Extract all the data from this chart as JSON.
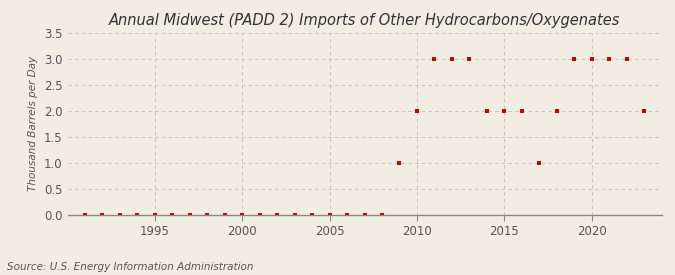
{
  "title": "Annual Midwest (PADD 2) Imports of Other Hydrocarbons/Oxygenates",
  "ylabel": "Thousand Barrels per Day",
  "source": "Source: U.S. Energy Information Administration",
  "background_color": "#f2ede3",
  "marker_color": "#cc0000",
  "marker_size": 3.5,
  "ylim": [
    0,
    3.5
  ],
  "yticks": [
    0.0,
    0.5,
    1.0,
    1.5,
    2.0,
    2.5,
    3.0,
    3.5
  ],
  "xlim": [
    1990,
    2024
  ],
  "xticks": [
    1995,
    2000,
    2005,
    2010,
    2015,
    2020
  ],
  "years": [
    1991,
    1992,
    1993,
    1994,
    1995,
    1996,
    1997,
    1998,
    1999,
    2000,
    2001,
    2002,
    2003,
    2004,
    2005,
    2006,
    2007,
    2008,
    2009,
    2010,
    2011,
    2012,
    2013,
    2014,
    2015,
    2016,
    2017,
    2018,
    2019,
    2020,
    2021,
    2022,
    2023
  ],
  "values": [
    0,
    0,
    0,
    0,
    0,
    0,
    0,
    0,
    0,
    0,
    0,
    0,
    0,
    0,
    0,
    0,
    0,
    0,
    1.0,
    2.0,
    3.0,
    3.0,
    3.0,
    2.0,
    2.0,
    2.0,
    1.0,
    2.0,
    3.0,
    3.0,
    3.0,
    3.0,
    2.0
  ],
  "grid_color": "#bbbbbb",
  "spine_color": "#888888",
  "tick_label_color": "#555555",
  "title_fontsize": 10.5,
  "ylabel_fontsize": 7.5,
  "tick_fontsize": 8.5,
  "source_fontsize": 7.5
}
